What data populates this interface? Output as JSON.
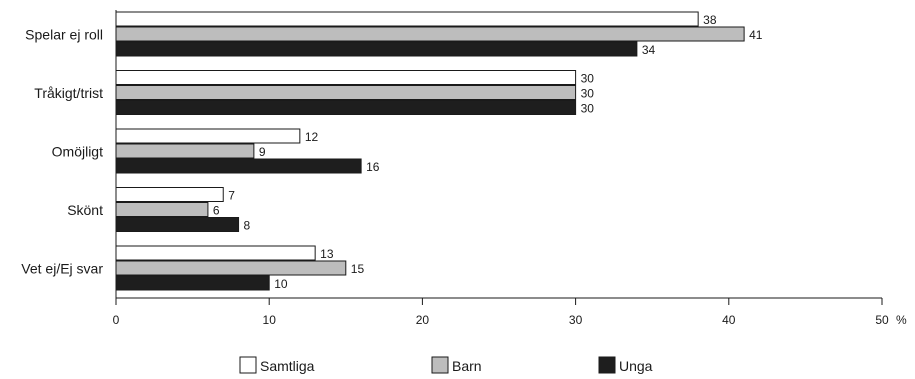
{
  "chart_data": {
    "type": "bar",
    "orientation": "horizontal",
    "categories": [
      "Spelar ej roll",
      "Tråkigt/trist",
      "Omöjligt",
      "Skönt",
      "Vet ej/Ej svar"
    ],
    "series": [
      {
        "name": "Samtliga",
        "color": "#ffffff",
        "values": [
          38,
          30,
          12,
          7,
          13
        ]
      },
      {
        "name": "Barn",
        "color": "#bdbdbd",
        "values": [
          41,
          30,
          9,
          6,
          15
        ]
      },
      {
        "name": "Unga",
        "color": "#1e1e1e",
        "values": [
          34,
          30,
          16,
          8,
          10
        ]
      }
    ],
    "xlim": [
      0,
      50
    ],
    "xticks": [
      0,
      10,
      20,
      30,
      40,
      50
    ],
    "xunit": "%",
    "grid": false,
    "legend_position": "bottom"
  }
}
